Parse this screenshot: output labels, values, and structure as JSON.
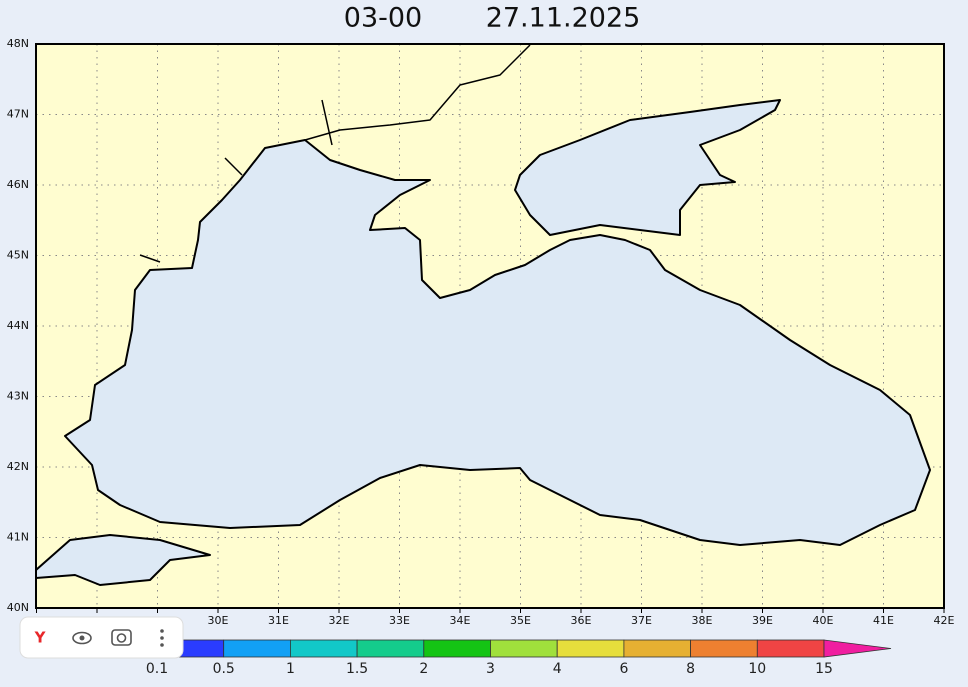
{
  "header": {
    "time": "03-00",
    "date": "27.11.2025"
  },
  "map": {
    "lat_labels": [
      "40N",
      "41N",
      "42N",
      "43N",
      "44N",
      "45N",
      "46N",
      "47N",
      "48N"
    ],
    "lon_labels": [
      "30E",
      "31E",
      "32E",
      "33E",
      "34E",
      "35E",
      "36E",
      "37E",
      "38E",
      "39E",
      "40E",
      "41E",
      "42E"
    ]
  },
  "colorbar": {
    "labels": [
      "0.1",
      "0.5",
      "1",
      "1.5",
      "2",
      "3",
      "4",
      "6",
      "8",
      "10",
      "15"
    ],
    "colors": [
      "#2a3cff",
      "#12a0f5",
      "#12c8c8",
      "#14cc8c",
      "#14c414",
      "#a0e03c",
      "#e6de3c",
      "#e6b032",
      "#ee8030",
      "#f04444",
      "#f01ea0"
    ]
  }
}
